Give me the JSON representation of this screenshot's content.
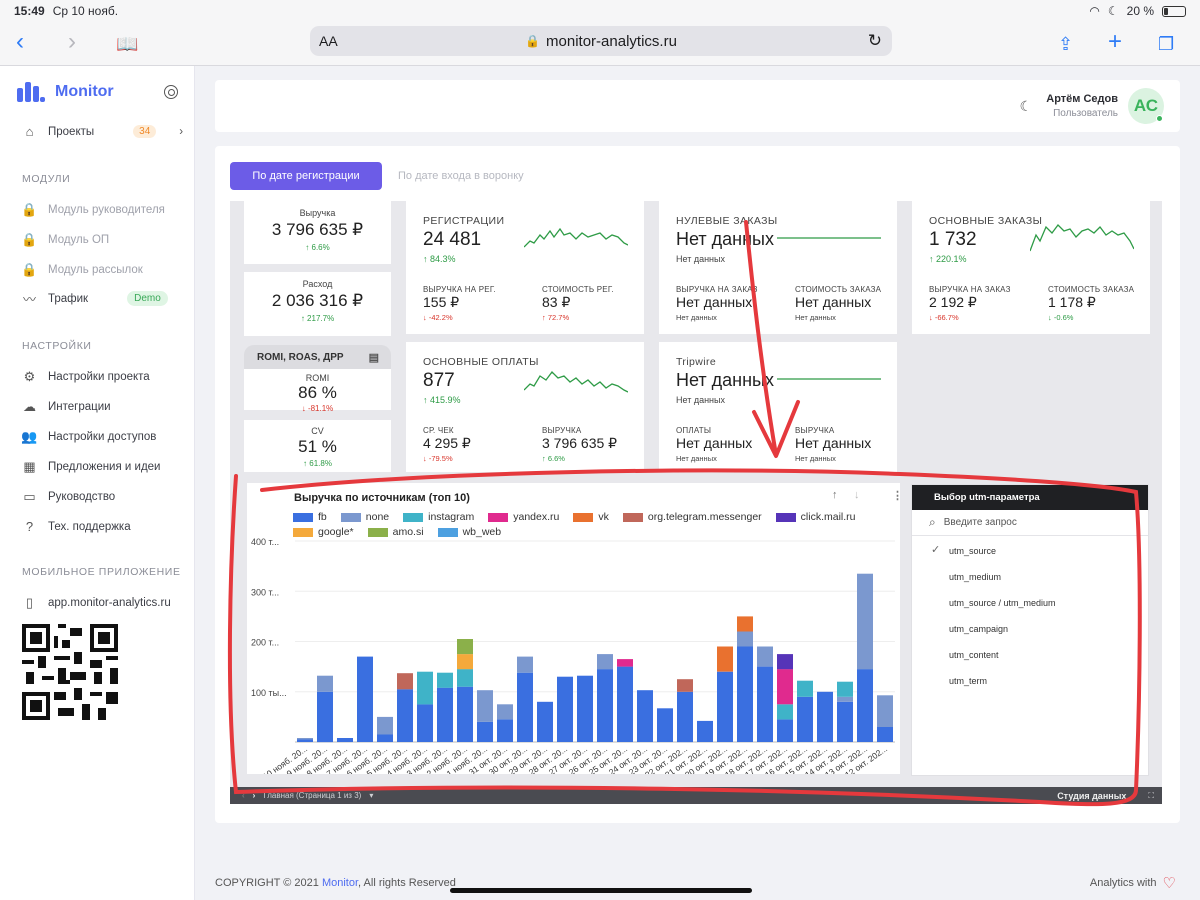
{
  "statusbar": {
    "time": "15:49",
    "date": "Ср 10 нояб.",
    "battery": "20 %"
  },
  "browser": {
    "url": "monitor-analytics.ru",
    "aa": "AA"
  },
  "sidebar": {
    "brand": "Monitor",
    "projects": {
      "label": "Проекты",
      "count": "34"
    },
    "modules_title": "МОДУЛИ",
    "modules": [
      {
        "label": "Модуль руководителя"
      },
      {
        "label": "Модуль ОП"
      },
      {
        "label": "Модуль рассылок"
      },
      {
        "label": "Трафик",
        "badge": "Demo"
      }
    ],
    "settings_title": "НАСТРОЙКИ",
    "settings": [
      {
        "label": "Настройки проекта"
      },
      {
        "label": "Интеграции"
      },
      {
        "label": "Настройки доступов"
      },
      {
        "label": "Предложения и идеи"
      },
      {
        "label": "Руководство"
      },
      {
        "label": "Тех. поддержка"
      }
    ],
    "mobile_title": "МОБИЛЬНОЕ ПРИЛОЖЕНИЕ",
    "mobile_link": "app.monitor-analytics.ru"
  },
  "header": {
    "user_name": "Артём Седов",
    "user_role": "Пользователь",
    "avatar": "АС"
  },
  "tabs": {
    "active": "По дате регистрации",
    "inactive": "По дате входа в воронку"
  },
  "kpi_small": [
    {
      "label": "Выручка",
      "value": "3 796 635 ₽",
      "change": "6.6%",
      "dir": "up"
    },
    {
      "label": "Расход",
      "value": "2 036 316 ₽",
      "change": "217.7%",
      "dir": "up"
    }
  ],
  "romi_section": {
    "title": "ROMI, ROAS, ДРР",
    "items": [
      {
        "label": "ROMI",
        "value": "86 %",
        "change": "-81.1%",
        "dir": "down"
      },
      {
        "label": "CV",
        "value": "51 %",
        "change": "61.8%",
        "dir": "up"
      }
    ]
  },
  "kpi_big": [
    {
      "title": "РЕГИСТРАЦИИ",
      "value": "24 481",
      "change": "84.3%",
      "dir": "up",
      "sub1_label": "ВЫРУЧКА НА РЕГ.",
      "sub1_value": "155 ₽",
      "sub1_change": "-42.2%",
      "sub1_dir": "down",
      "sub2_label": "СТОИМОСТЬ РЕГ.",
      "sub2_value": "83 ₽",
      "sub2_change": "72.7%",
      "sub2_dir": "down"
    },
    {
      "title": "НУЛЕВЫЕ ЗАКАЗЫ",
      "value": "Нет данных",
      "note": "Нет данных",
      "sub1_label": "ВЫРУЧКА НА ЗАКАЗ",
      "sub1_value": "Нет данных",
      "sub1_note": "Нет данных",
      "sub2_label": "СТОИМОСТЬ ЗАКАЗА",
      "sub2_value": "Нет данных",
      "sub2_note": "Нет данных"
    },
    {
      "title": "ОСНОВНЫЕ ЗАКАЗЫ",
      "value": "1 732",
      "change": "220.1%",
      "dir": "up",
      "sub1_label": "ВЫРУЧКА НА ЗАКАЗ",
      "sub1_value": "2 192 ₽",
      "sub1_change": "-66.7%",
      "sub1_dir": "down",
      "sub2_label": "СТОИМОСТЬ ЗАКАЗА",
      "sub2_value": "1 178 ₽",
      "sub2_change": "-0.6%",
      "sub2_dir": "up"
    },
    {
      "title": "ОСНОВНЫЕ ОПЛАТЫ",
      "value": "877",
      "change": "415.9%",
      "dir": "up",
      "sub1_label": "СР. ЧЕК",
      "sub1_value": "4 295 ₽",
      "sub1_change": "-79.5%",
      "sub1_dir": "down",
      "sub2_label": "ВЫРУЧКА",
      "sub2_value": "3 796 635 ₽",
      "sub2_change": "6.6%",
      "sub2_dir": "up"
    },
    {
      "title": "Tripwire",
      "value": "Нет данных",
      "note": "Нет данных",
      "sub1_label": "ОПЛАТЫ",
      "sub1_value": "Нет данных",
      "sub1_note": "Нет данных",
      "sub2_label": "ВЫРУЧКА",
      "sub2_value": "Нет данных",
      "sub2_note": "Нет данных"
    }
  ],
  "utm": {
    "title": "Выбор utm-параметра",
    "placeholder": "Введите запрос",
    "options": [
      "utm_source",
      "utm_medium",
      "utm_source / utm_medium",
      "utm_campaign",
      "utm_content",
      "utm_term"
    ],
    "selected": "utm_source"
  },
  "bottom_bar": {
    "page": "Главная (Страница 1 из 3)",
    "right": "Студия данных"
  },
  "footer": {
    "copyright": "COPYRIGHT © 2021",
    "brand": "Monitor",
    "rights": ", All rights Reserved",
    "right_text": "Analytics with"
  },
  "colors": {
    "accent": "#6c5ce7",
    "brand": "#4e6cf0",
    "up": "#2e9b46",
    "down": "#d8352b",
    "annotation": "#e5393d"
  },
  "chart_data": {
    "type": "bar",
    "stacked": true,
    "title": "Выручка по источникам (топ 10)",
    "y_ticks": [
      "400 т...",
      "300 т...",
      "200 т...",
      "100 ты..."
    ],
    "ylim": [
      0,
      400000
    ],
    "categories": [
      "10 нояб. 20...",
      "9 нояб. 20...",
      "8 нояб. 20...",
      "7 нояб. 20...",
      "6 нояб. 20...",
      "5 нояб. 20...",
      "4 нояб. 20...",
      "3 нояб. 20...",
      "2 нояб. 20...",
      "1 нояб. 20...",
      "31 окт. 20...",
      "30 окт. 20...",
      "29 окт. 20...",
      "28 окт. 20...",
      "27 окт. 20...",
      "26 окт. 20...",
      "25 окт. 20...",
      "24 окт. 20...",
      "23 окт. 20...",
      "22 окт. 202...",
      "21 окт. 202...",
      "20 окт. 202...",
      "19 окт. 202...",
      "18 окт. 202...",
      "17 окт. 202...",
      "16 окт. 202...",
      "15 окт. 202...",
      "14 окт. 202...",
      "13 окт. 202...",
      "12 окт. 202..."
    ],
    "series": [
      {
        "name": "fb",
        "color": "#3a6fe0",
        "values": [
          5000,
          100000,
          8000,
          170000,
          15000,
          105000,
          75000,
          108000,
          110000,
          40000,
          45000,
          138000,
          80000,
          130000,
          132000,
          145000,
          150000,
          103000,
          67000,
          100000,
          42000,
          140000,
          190000,
          150000,
          45000,
          90000,
          100000,
          80000,
          145000,
          30000
        ]
      },
      {
        "name": "none",
        "color": "#7b98cf",
        "values": [
          3000,
          32000,
          0,
          0,
          35000,
          0,
          0,
          0,
          0,
          63000,
          30000,
          32000,
          0,
          0,
          0,
          30000,
          0,
          0,
          0,
          0,
          0,
          0,
          30000,
          40000,
          0,
          0,
          0,
          10000,
          190000,
          63000
        ]
      },
      {
        "name": "instagram",
        "color": "#3fb3c8",
        "values": [
          0,
          0,
          0,
          0,
          0,
          0,
          65000,
          30000,
          35000,
          0,
          0,
          0,
          0,
          0,
          0,
          0,
          0,
          0,
          0,
          0,
          0,
          0,
          0,
          0,
          30000,
          32000,
          0,
          30000,
          0,
          0
        ]
      },
      {
        "name": "yandex.ru",
        "color": "#e02a8e",
        "values": [
          0,
          0,
          0,
          0,
          0,
          0,
          0,
          0,
          0,
          0,
          0,
          0,
          0,
          0,
          0,
          0,
          15000,
          0,
          0,
          0,
          0,
          0,
          0,
          0,
          70000,
          0,
          0,
          0,
          0,
          0
        ]
      },
      {
        "name": "vk",
        "color": "#e9712f",
        "values": [
          0,
          0,
          0,
          0,
          0,
          0,
          0,
          0,
          0,
          0,
          0,
          0,
          0,
          0,
          0,
          0,
          0,
          0,
          0,
          0,
          0,
          50000,
          30000,
          0,
          0,
          0,
          0,
          0,
          0,
          0
        ]
      },
      {
        "name": "org.telegram.messenger",
        "color": "#c0675a",
        "values": [
          0,
          0,
          0,
          0,
          0,
          32000,
          0,
          0,
          0,
          0,
          0,
          0,
          0,
          0,
          0,
          0,
          0,
          0,
          0,
          25000,
          0,
          0,
          0,
          0,
          0,
          0,
          0,
          0,
          0,
          0
        ]
      },
      {
        "name": "click.mail.ru",
        "color": "#5634b8",
        "values": [
          0,
          0,
          0,
          0,
          0,
          0,
          0,
          0,
          0,
          0,
          0,
          0,
          0,
          0,
          0,
          0,
          0,
          0,
          0,
          0,
          0,
          0,
          0,
          0,
          30000,
          0,
          0,
          0,
          0,
          0
        ]
      },
      {
        "name": "google*",
        "color": "#f4a93b",
        "values": [
          0,
          0,
          0,
          0,
          0,
          0,
          0,
          0,
          30000,
          0,
          0,
          0,
          0,
          0,
          0,
          0,
          0,
          0,
          0,
          0,
          0,
          0,
          0,
          0,
          0,
          0,
          0,
          0,
          0,
          0
        ]
      },
      {
        "name": "amo.si",
        "color": "#8bb04a",
        "values": [
          0,
          0,
          0,
          0,
          0,
          0,
          0,
          0,
          30000,
          0,
          0,
          0,
          0,
          0,
          0,
          0,
          0,
          0,
          0,
          0,
          0,
          0,
          0,
          0,
          0,
          0,
          0,
          0,
          0,
          0
        ]
      },
      {
        "name": "wb_web",
        "color": "#4da0e0",
        "values": [
          0,
          0,
          0,
          0,
          0,
          0,
          0,
          0,
          0,
          0,
          0,
          0,
          0,
          0,
          0,
          0,
          0,
          0,
          0,
          0,
          0,
          0,
          0,
          0,
          0,
          0,
          0,
          0,
          0,
          0
        ]
      }
    ]
  }
}
